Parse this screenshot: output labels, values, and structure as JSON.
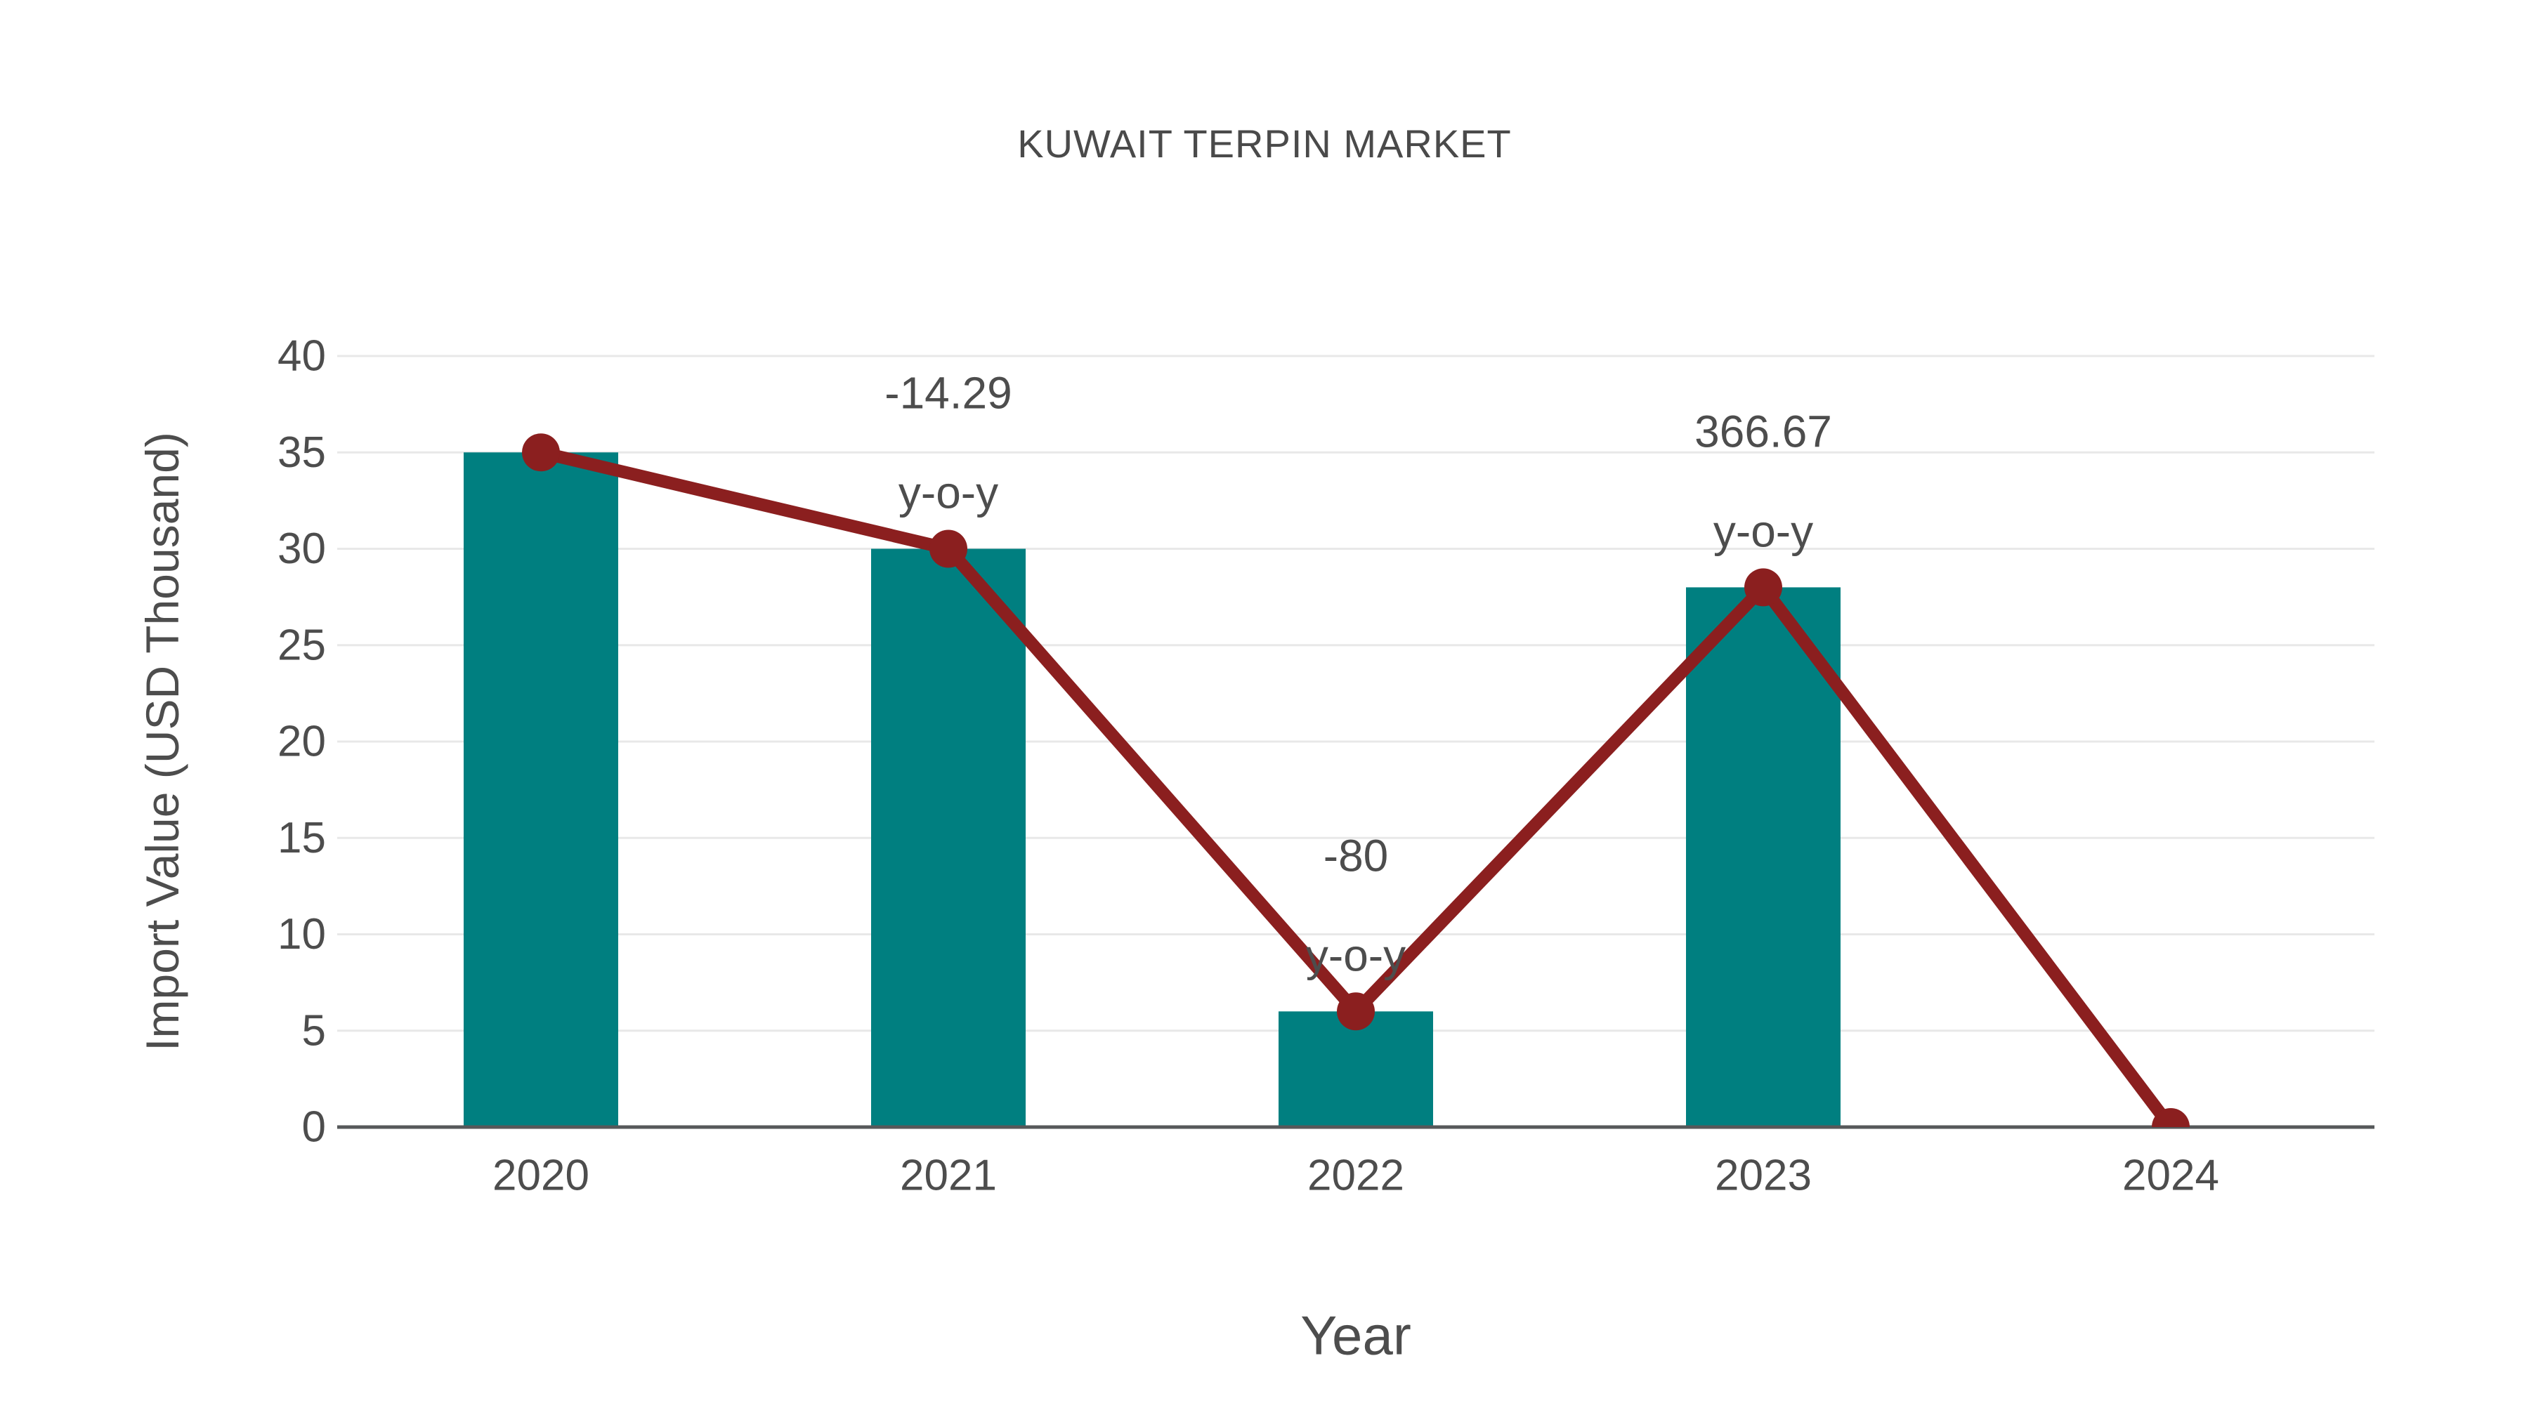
{
  "chart_data": {
    "type": "bar",
    "title": "KUWAIT TERPIN MARKET",
    "xlabel": "Year",
    "ylabel": "Import Value (USD Thousand)",
    "categories": [
      "2020",
      "2021",
      "2022",
      "2023",
      "2024"
    ],
    "series": [
      {
        "name": "import-value-bars",
        "type": "bar",
        "values": [
          35,
          30,
          6,
          28,
          0
        ],
        "color": "#007f80"
      },
      {
        "name": "import-value-trend",
        "type": "line",
        "values": [
          35,
          30,
          6,
          28,
          0
        ],
        "color": "#8b1f1f"
      }
    ],
    "annotations": [
      {
        "category": "2021",
        "value_label": "-14.29",
        "sub_label": "y-o-y"
      },
      {
        "category": "2022",
        "value_label": "-80",
        "sub_label": "y-o-y"
      },
      {
        "category": "2023",
        "value_label": "366.67",
        "sub_label": "y-o-y"
      }
    ],
    "ylim": [
      0,
      40
    ],
    "yticks": [
      0,
      5,
      10,
      15,
      20,
      25,
      30,
      35,
      40
    ],
    "grid": true,
    "legend": false,
    "colors": {
      "bar": "#007f80",
      "line": "#8b1f1f",
      "grid": "#e8e8e8",
      "axis": "#56585a",
      "text": "#4d4d4d",
      "title": "#4a4a4a",
      "background": "#ffffff"
    }
  }
}
